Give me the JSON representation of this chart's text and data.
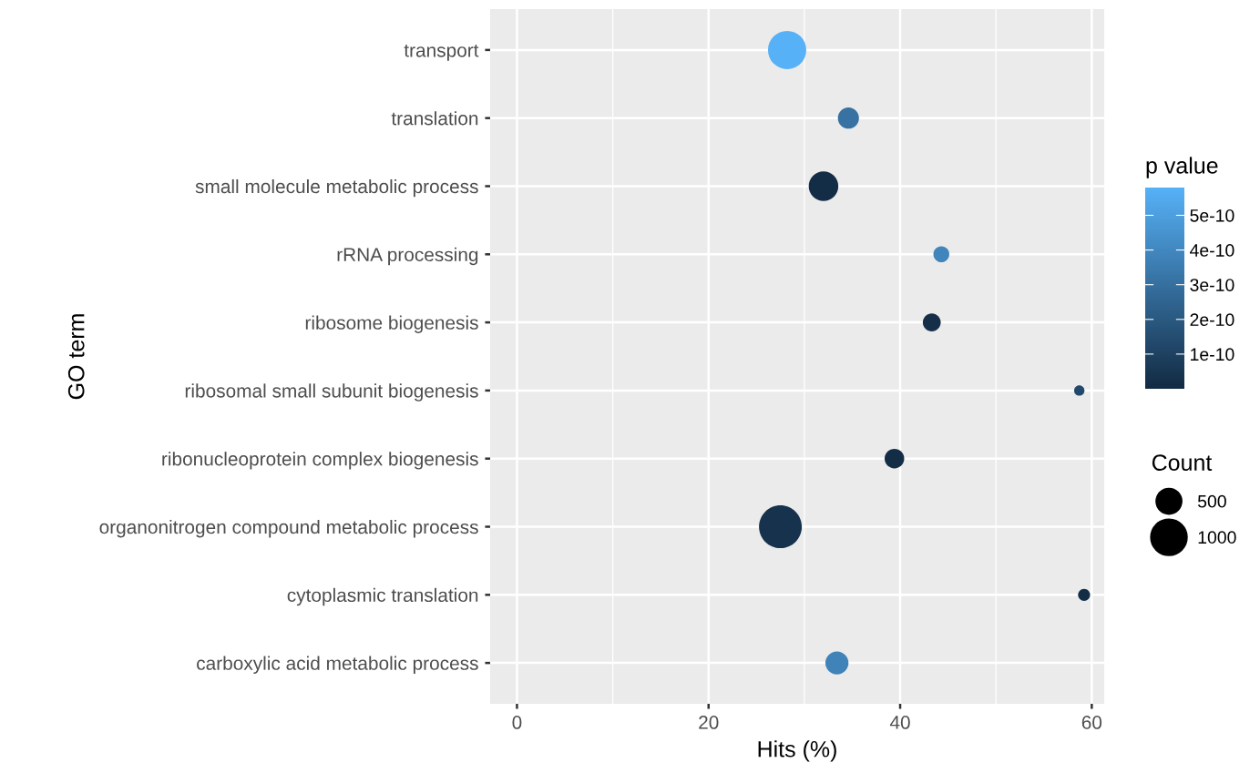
{
  "chart_data": {
    "type": "bubble",
    "xlabel": "Hits (%)",
    "ylabel": "GO term",
    "clabel": "p value",
    "legend_title": "Count",
    "categories": [
      "transport",
      "translation",
      "small molecule metabolic process",
      "rRNA processing",
      "ribosome biogenesis",
      "ribosomal small subunit biogenesis",
      "ribonucleoprotein complex biogenesis",
      "organonitrogen compound metabolic process",
      "cytoplasmic translation",
      "carboxylic acid metabolic process"
    ],
    "values": [
      28.2,
      34.6,
      32.0,
      44.3,
      43.3,
      58.7,
      39.4,
      27.5,
      59.2,
      33.4
    ],
    "sizes": [
      1103,
      336,
      660,
      191,
      243,
      81,
      289,
      1381,
      109,
      403
    ],
    "size_legend": [
      500,
      1000
    ],
    "cvalues": [
      5.8e-10,
      3.1e-10,
      1e-11,
      3.9e-10,
      2e-11,
      1.3e-10,
      1e-11,
      3e-11,
      1e-11,
      3.8e-10
    ],
    "clim": [
      0,
      5.8e-10
    ],
    "cticks": [
      {
        "value": 1e-10,
        "label": "1e-10"
      },
      {
        "value": 2e-10,
        "label": "2e-10"
      },
      {
        "value": 3e-10,
        "label": "3e-10"
      },
      {
        "value": 4e-10,
        "label": "4e-10"
      },
      {
        "value": 5e-10,
        "label": "5e-10"
      }
    ],
    "orientation": "horizontal",
    "xlim": [
      -2.8,
      61.3
    ],
    "xticks": [
      0,
      20,
      40,
      60
    ],
    "grid": true
  }
}
